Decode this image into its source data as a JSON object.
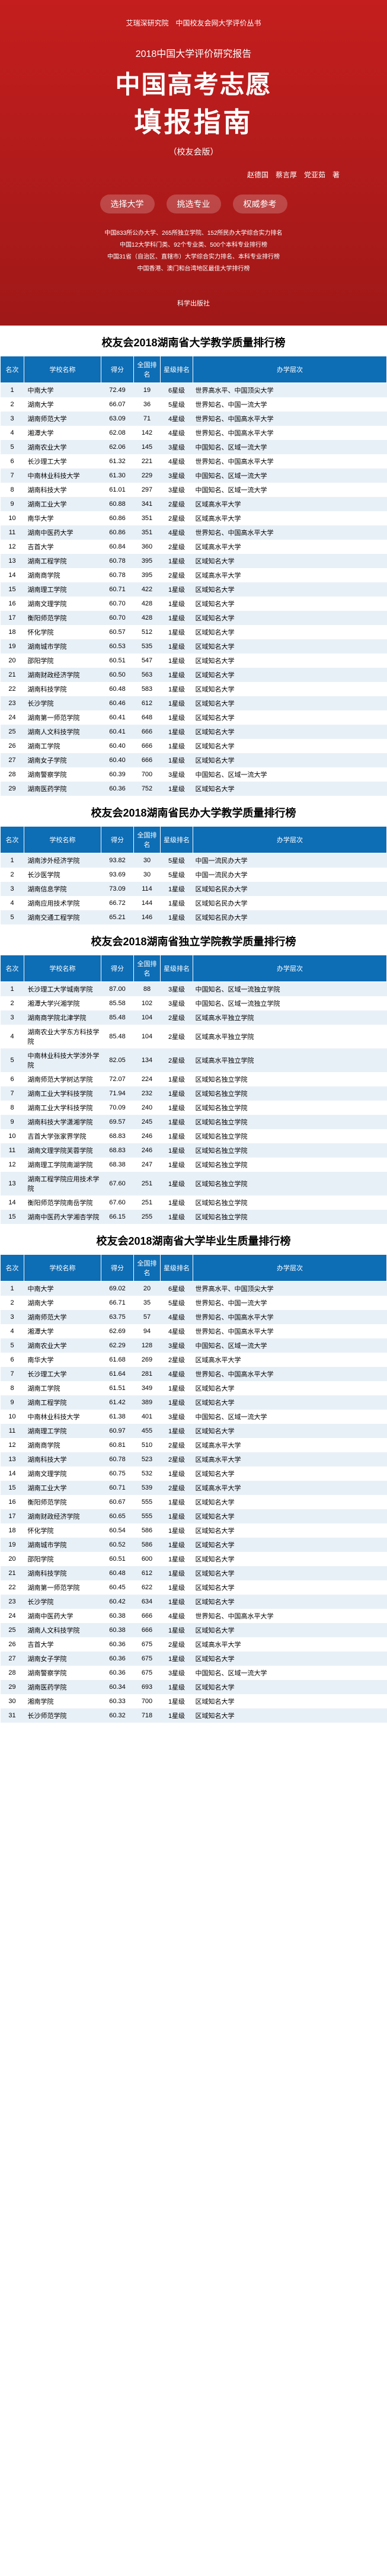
{
  "cover": {
    "topLine": "艾瑞深研究院　中国校友会网大学评价丛书",
    "year": "2018中国大学评价研究报告",
    "title1": "中国高考志愿",
    "title2": "填报指南",
    "version": "（校友会版）",
    "authors": "赵德国　蔡言厚　党亚茹　著",
    "badges": [
      "选择大学",
      "挑选专业",
      "权威参考"
    ],
    "desc": [
      "中国833所公办大学、265所独立学院、152所民办大学综合实力排名",
      "中国12大学科门类、92个专业类、500个本科专业排行榜",
      "中国31省（自治区、直辖市）大学综合实力排名、本科专业排行榜",
      "中国香港、澳门和台湾地区最佳大学排行榜"
    ],
    "publisher": "科学出版社"
  },
  "tables": [
    {
      "title": "校友会2018湖南省大学教学质量排行榜",
      "headers": [
        "名次",
        "学校名称",
        "得分",
        "全国排名",
        "星级排名",
        "办学层次"
      ],
      "rows": [
        [
          "1",
          "中南大学",
          "72.49",
          "19",
          "6星级",
          "世界高水平、中国顶尖大学"
        ],
        [
          "2",
          "湖南大学",
          "66.07",
          "36",
          "5星级",
          "世界知名、中国一流大学"
        ],
        [
          "3",
          "湖南师范大学",
          "63.09",
          "71",
          "4星级",
          "世界知名、中国高水平大学"
        ],
        [
          "4",
          "湘潭大学",
          "62.08",
          "142",
          "4星级",
          "世界知名、中国高水平大学"
        ],
        [
          "5",
          "湖南农业大学",
          "62.06",
          "145",
          "3星级",
          "中国知名、区域一流大学"
        ],
        [
          "6",
          "长沙理工大学",
          "61.32",
          "221",
          "4星级",
          "世界知名、中国高水平大学"
        ],
        [
          "7",
          "中南林业科技大学",
          "61.30",
          "229",
          "3星级",
          "中国知名、区域一流大学"
        ],
        [
          "8",
          "湖南科技大学",
          "61.01",
          "297",
          "3星级",
          "中国知名、区域一流大学"
        ],
        [
          "9",
          "湖南工业大学",
          "60.88",
          "341",
          "2星级",
          "区域高水平大学"
        ],
        [
          "10",
          "南华大学",
          "60.86",
          "351",
          "2星级",
          "区域高水平大学"
        ],
        [
          "11",
          "湖南中医药大学",
          "60.86",
          "351",
          "4星级",
          "世界知名、中国高水平大学"
        ],
        [
          "12",
          "吉首大学",
          "60.84",
          "360",
          "2星级",
          "区域高水平大学"
        ],
        [
          "13",
          "湖南工程学院",
          "60.78",
          "395",
          "1星级",
          "区域知名大学"
        ],
        [
          "14",
          "湖南商学院",
          "60.78",
          "395",
          "2星级",
          "区域高水平大学"
        ],
        [
          "15",
          "湖南理工学院",
          "60.71",
          "422",
          "1星级",
          "区域知名大学"
        ],
        [
          "16",
          "湖南文理学院",
          "60.70",
          "428",
          "1星级",
          "区域知名大学"
        ],
        [
          "17",
          "衡阳师范学院",
          "60.70",
          "428",
          "1星级",
          "区域知名大学"
        ],
        [
          "18",
          "怀化学院",
          "60.57",
          "512",
          "1星级",
          "区域知名大学"
        ],
        [
          "19",
          "湖南城市学院",
          "60.53",
          "535",
          "1星级",
          "区域知名大学"
        ],
        [
          "20",
          "邵阳学院",
          "60.51",
          "547",
          "1星级",
          "区域知名大学"
        ],
        [
          "21",
          "湖南财政经济学院",
          "60.50",
          "563",
          "1星级",
          "区域知名大学"
        ],
        [
          "22",
          "湖南科技学院",
          "60.48",
          "583",
          "1星级",
          "区域知名大学"
        ],
        [
          "23",
          "长沙学院",
          "60.46",
          "612",
          "1星级",
          "区域知名大学"
        ],
        [
          "24",
          "湖南第一师范学院",
          "60.41",
          "648",
          "1星级",
          "区域知名大学"
        ],
        [
          "25",
          "湖南人文科技学院",
          "60.41",
          "666",
          "1星级",
          "区域知名大学"
        ],
        [
          "26",
          "湖南工学院",
          "60.40",
          "666",
          "1星级",
          "区域知名大学"
        ],
        [
          "27",
          "湖南女子学院",
          "60.40",
          "666",
          "1星级",
          "区域知名大学"
        ],
        [
          "28",
          "湖南警察学院",
          "60.39",
          "700",
          "3星级",
          "中国知名、区域一流大学"
        ],
        [
          "29",
          "湖南医药学院",
          "60.36",
          "752",
          "1星级",
          "区域知名大学"
        ]
      ]
    },
    {
      "title": "校友会2018湖南省民办大学教学质量排行榜",
      "headers": [
        "名次",
        "学校名称",
        "得分",
        "全国排名",
        "星级排名",
        "办学层次"
      ],
      "rows": [
        [
          "1",
          "湖南涉外经济学院",
          "93.82",
          "30",
          "5星级",
          "中国一流民办大学"
        ],
        [
          "2",
          "长沙医学院",
          "93.69",
          "30",
          "5星级",
          "中国一流民办大学"
        ],
        [
          "3",
          "湖南信息学院",
          "73.09",
          "114",
          "1星级",
          "区域知名民办大学"
        ],
        [
          "4",
          "湖南应用技术学院",
          "66.72",
          "144",
          "1星级",
          "区域知名民办大学"
        ],
        [
          "5",
          "湖南交通工程学院",
          "65.21",
          "146",
          "1星级",
          "区域知名民办大学"
        ]
      ]
    },
    {
      "title": "校友会2018湖南省独立学院教学质量排行榜",
      "headers": [
        "名次",
        "学校名称",
        "得分",
        "全国排名",
        "星级排名",
        "办学层次"
      ],
      "rows": [
        [
          "1",
          "长沙理工大学城南学院",
          "87.00",
          "88",
          "3星级",
          "中国知名、区域一流独立学院"
        ],
        [
          "2",
          "湘潭大学兴湘学院",
          "85.58",
          "102",
          "3星级",
          "中国知名、区域一流独立学院"
        ],
        [
          "3",
          "湖南商学院北津学院",
          "85.48",
          "104",
          "2星级",
          "区域高水平独立学院"
        ],
        [
          "4",
          "湖南农业大学东方科技学院",
          "85.48",
          "104",
          "2星级",
          "区域高水平独立学院"
        ],
        [
          "5",
          "中南林业科技大学涉外学院",
          "82.05",
          "134",
          "2星级",
          "区域高水平独立学院"
        ],
        [
          "6",
          "湖南师范大学树达学院",
          "72.07",
          "224",
          "1星级",
          "区域知名独立学院"
        ],
        [
          "7",
          "湖南工业大学科技学院",
          "71.94",
          "232",
          "1星级",
          "区域知名独立学院"
        ],
        [
          "8",
          "湖南工业大学科技学院",
          "70.09",
          "240",
          "1星级",
          "区域知名独立学院"
        ],
        [
          "9",
          "湖南科技大学潇湘学院",
          "69.57",
          "245",
          "1星级",
          "区域知名独立学院"
        ],
        [
          "10",
          "吉首大学张家界学院",
          "68.83",
          "246",
          "1星级",
          "区域知名独立学院"
        ],
        [
          "11",
          "湖南文理学院芙蓉学院",
          "68.83",
          "246",
          "1星级",
          "区域知名独立学院"
        ],
        [
          "12",
          "湖南理工学院南湖学院",
          "68.38",
          "247",
          "1星级",
          "区域知名独立学院"
        ],
        [
          "13",
          "湖南工程学院应用技术学院",
          "67.60",
          "251",
          "1星级",
          "区域知名独立学院"
        ],
        [
          "14",
          "衡阳师范学院南岳学院",
          "67.60",
          "251",
          "1星级",
          "区域知名独立学院"
        ],
        [
          "15",
          "湖南中医药大学湘杏学院",
          "66.15",
          "255",
          "1星级",
          "区域知名独立学院"
        ]
      ]
    },
    {
      "title": "校友会2018湖南省大学毕业生质量排行榜",
      "headers": [
        "名次",
        "学校名称",
        "得分",
        "全国排名",
        "星级排名",
        "办学层次"
      ],
      "rows": [
        [
          "1",
          "中南大学",
          "69.02",
          "20",
          "6星级",
          "世界高水平、中国顶尖大学"
        ],
        [
          "2",
          "湖南大学",
          "66.71",
          "35",
          "5星级",
          "世界知名、中国一流大学"
        ],
        [
          "3",
          "湖南师范大学",
          "63.75",
          "57",
          "4星级",
          "世界知名、中国高水平大学"
        ],
        [
          "4",
          "湘潭大学",
          "62.69",
          "94",
          "4星级",
          "世界知名、中国高水平大学"
        ],
        [
          "5",
          "湖南农业大学",
          "62.29",
          "128",
          "3星级",
          "中国知名、区域一流大学"
        ],
        [
          "6",
          "南华大学",
          "61.68",
          "269",
          "2星级",
          "区域高水平大学"
        ],
        [
          "7",
          "长沙理工大学",
          "61.64",
          "281",
          "4星级",
          "世界知名、中国高水平大学"
        ],
        [
          "8",
          "湖南工学院",
          "61.51",
          "349",
          "1星级",
          "区域知名大学"
        ],
        [
          "9",
          "湖南工程学院",
          "61.42",
          "389",
          "1星级",
          "区域知名大学"
        ],
        [
          "10",
          "中南林业科技大学",
          "61.38",
          "401",
          "3星级",
          "中国知名、区域一流大学"
        ],
        [
          "11",
          "湖南理工学院",
          "60.97",
          "455",
          "1星级",
          "区域知名大学"
        ],
        [
          "12",
          "湖南商学院",
          "60.81",
          "510",
          "2星级",
          "区域高水平大学"
        ],
        [
          "13",
          "湖南科技大学",
          "60.78",
          "523",
          "2星级",
          "区域高水平大学"
        ],
        [
          "14",
          "湖南文理学院",
          "60.75",
          "532",
          "1星级",
          "区域知名大学"
        ],
        [
          "15",
          "湖南工业大学",
          "60.71",
          "539",
          "2星级",
          "区域高水平大学"
        ],
        [
          "16",
          "衡阳师范学院",
          "60.67",
          "555",
          "1星级",
          "区域知名大学"
        ],
        [
          "17",
          "湖南财政经济学院",
          "60.65",
          "555",
          "1星级",
          "区域知名大学"
        ],
        [
          "18",
          "怀化学院",
          "60.54",
          "586",
          "1星级",
          "区域知名大学"
        ],
        [
          "19",
          "湖南城市学院",
          "60.52",
          "586",
          "1星级",
          "区域知名大学"
        ],
        [
          "20",
          "邵阳学院",
          "60.51",
          "600",
          "1星级",
          "区域知名大学"
        ],
        [
          "21",
          "湖南科技学院",
          "60.48",
          "612",
          "1星级",
          "区域知名大学"
        ],
        [
          "22",
          "湖南第一师范学院",
          "60.45",
          "622",
          "1星级",
          "区域知名大学"
        ],
        [
          "23",
          "长沙学院",
          "60.42",
          "634",
          "1星级",
          "区域知名大学"
        ],
        [
          "24",
          "湖南中医药大学",
          "60.38",
          "666",
          "4星级",
          "世界知名、中国高水平大学"
        ],
        [
          "25",
          "湖南人文科技学院",
          "60.38",
          "666",
          "1星级",
          "区域知名大学"
        ],
        [
          "26",
          "吉首大学",
          "60.36",
          "675",
          "2星级",
          "区域高水平大学"
        ],
        [
          "27",
          "湖南女子学院",
          "60.36",
          "675",
          "1星级",
          "区域知名大学"
        ],
        [
          "28",
          "湖南警察学院",
          "60.36",
          "675",
          "3星级",
          "中国知名、区域一流大学"
        ],
        [
          "29",
          "湖南医药学院",
          "60.34",
          "693",
          "1星级",
          "区域知名大学"
        ],
        [
          "30",
          "湘南学院",
          "60.33",
          "700",
          "1星级",
          "区域知名大学"
        ],
        [
          "31",
          "长沙师范学院",
          "60.32",
          "718",
          "1星级",
          "区域知名大学"
        ]
      ]
    }
  ]
}
